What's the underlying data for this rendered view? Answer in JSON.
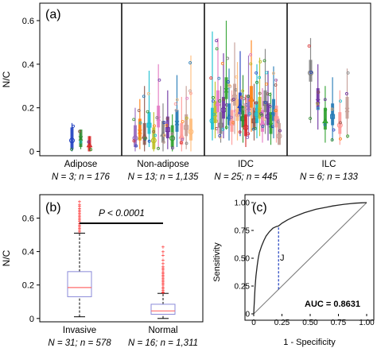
{
  "chart_data": [
    {
      "panel": "(a)",
      "type": "scatter",
      "ylabel": "N/C",
      "ylim": [
        -0.02,
        0.68
      ],
      "yticks": [
        "0",
        "0.2",
        "0.4",
        "0.6"
      ],
      "yticks_num": [
        0,
        0.2,
        0.4,
        0.6
      ],
      "groups": [
        {
          "label": "Adipose",
          "stats": "N = 3; n = 176",
          "patients": 3,
          "cells": 176
        },
        {
          "label": "Non-adipose",
          "stats": "N = 13; n = 1,135",
          "patients": 13,
          "cells": 1135
        },
        {
          "label": "IDC",
          "stats": "N = 25; n = 445",
          "patients": 25,
          "cells": 445
        },
        {
          "label": "ILC",
          "stats": "N = 6; n = 133",
          "patients": 6,
          "cells": 133
        }
      ],
      "colors": [
        "#1f3fbf",
        "#2a8a2a",
        "#d62728",
        "#9467bd",
        "#ff7f0e",
        "#8c564b",
        "#17becf",
        "#bcbd22",
        "#e377c2",
        "#7f7f7f",
        "#6b2fa0",
        "#2ca02c",
        "#1f77b4",
        "#ff9896",
        "#c49c94",
        "#ffbb78"
      ],
      "patient_means": [
        [
          0.05,
          0.06,
          0.03
        ],
        [
          0.06,
          0.09,
          0.07,
          0.12,
          0.05,
          0.15,
          0.08,
          0.1,
          0.06,
          0.13,
          0.07,
          0.11,
          0.09
        ],
        [
          0.14,
          0.17,
          0.22,
          0.12,
          0.19,
          0.28,
          0.16,
          0.13,
          0.25,
          0.18,
          0.21,
          0.15,
          0.11,
          0.2,
          0.24,
          0.14,
          0.17,
          0.19,
          0.13,
          0.22,
          0.16,
          0.12,
          0.18,
          0.15,
          0.07
        ],
        [
          0.36,
          0.23,
          0.14,
          0.16,
          0.12,
          0.19
        ]
      ],
      "patient_ranges": [
        [
          [
            0.0,
            0.13
          ],
          [
            0.01,
            0.1
          ],
          [
            0.0,
            0.07
          ]
        ],
        [
          [
            0.0,
            0.2
          ],
          [
            0.01,
            0.24
          ],
          [
            0.0,
            0.3
          ],
          [
            0.02,
            0.37
          ],
          [
            0.0,
            0.18
          ],
          [
            0.01,
            0.4
          ],
          [
            0.0,
            0.22
          ],
          [
            0.01,
            0.28
          ],
          [
            0.0,
            0.17
          ],
          [
            0.02,
            0.35
          ],
          [
            0.0,
            0.25
          ],
          [
            0.01,
            0.3
          ],
          [
            0.0,
            0.44
          ]
        ],
        [
          [
            0.05,
            0.55
          ],
          [
            0.06,
            0.32
          ],
          [
            0.08,
            0.52
          ],
          [
            0.04,
            0.3
          ],
          [
            0.06,
            0.45
          ],
          [
            0.1,
            0.6
          ],
          [
            0.05,
            0.38
          ],
          [
            0.03,
            0.28
          ],
          [
            0.08,
            0.5
          ],
          [
            0.05,
            0.41
          ],
          [
            0.07,
            0.46
          ],
          [
            0.04,
            0.35
          ],
          [
            0.02,
            0.26
          ],
          [
            0.06,
            0.44
          ],
          [
            0.09,
            0.51
          ],
          [
            0.05,
            0.31
          ],
          [
            0.06,
            0.4
          ],
          [
            0.07,
            0.43
          ],
          [
            0.04,
            0.29
          ],
          [
            0.08,
            0.47
          ],
          [
            0.05,
            0.37
          ],
          [
            0.03,
            0.27
          ],
          [
            0.06,
            0.39
          ],
          [
            0.04,
            0.33
          ],
          [
            0.03,
            0.15
          ]
        ],
        [
          [
            0.13,
            0.52
          ],
          [
            0.1,
            0.4
          ],
          [
            0.04,
            0.3
          ],
          [
            0.05,
            0.34
          ],
          [
            0.03,
            0.28
          ],
          [
            0.06,
            0.38
          ]
        ]
      ]
    },
    {
      "panel": "(b)",
      "type": "box",
      "ylabel": "N/C",
      "ylim": [
        -0.02,
        0.74
      ],
      "yticks": [
        "0",
        "0.2",
        "0.4",
        "0.6"
      ],
      "yticks_num": [
        0,
        0.2,
        0.4,
        0.6
      ],
      "annotation": "P < 0.0001",
      "groups": [
        {
          "label": "Invasive",
          "stats": "N = 31; n = 578",
          "q1": 0.13,
          "median": 0.185,
          "q3": 0.28,
          "whisker_low": 0.01,
          "whisker_high": 0.51,
          "outliers": [
            0.52,
            0.53,
            0.54,
            0.55,
            0.56,
            0.57,
            0.58,
            0.59,
            0.6,
            0.61,
            0.62,
            0.63,
            0.64,
            0.65,
            0.66,
            0.67,
            0.68,
            0.7
          ]
        },
        {
          "label": "Normal",
          "stats": "N = 16; n = 1,311",
          "q1": 0.025,
          "median": 0.045,
          "q3": 0.085,
          "whisker_low": 0.0,
          "whisker_high": 0.15,
          "outliers": [
            0.155,
            0.16,
            0.17,
            0.18,
            0.19,
            0.2,
            0.21,
            0.22,
            0.23,
            0.24,
            0.25,
            0.26,
            0.27,
            0.28,
            0.29,
            0.3,
            0.31,
            0.33,
            0.35,
            0.38,
            0.4,
            0.43
          ]
        }
      ],
      "colors": {
        "box": "#8a8ad8",
        "median": "#ff6b6b",
        "outlier": "#ff2020",
        "whisker": "#000000"
      }
    },
    {
      "panel": "(c)",
      "type": "line",
      "xlabel": "1 - Specificity",
      "ylabel": "Sensitivity",
      "xlim": [
        0,
        1
      ],
      "ylim": [
        0,
        1
      ],
      "xticks": [
        "0",
        "0.25",
        "0.50",
        "0.75",
        "1.00"
      ],
      "yticks": [
        "0",
        "0.25",
        "0.50",
        "0.75",
        "1.00"
      ],
      "ticks_num": [
        0,
        0.25,
        0.5,
        0.75,
        1.0
      ],
      "annotation": "AUC = 0.8631",
      "j_label": "J",
      "j_point": {
        "x": 0.22,
        "y_low": 0.22,
        "y_high": 0.79
      },
      "roc": {
        "x": [
          0,
          0.003,
          0.007,
          0.012,
          0.02,
          0.03,
          0.04,
          0.05,
          0.07,
          0.09,
          0.11,
          0.14,
          0.17,
          0.2,
          0.22,
          0.25,
          0.3,
          0.35,
          0.4,
          0.45,
          0.5,
          0.55,
          0.6,
          0.65,
          0.7,
          0.75,
          0.8,
          0.85,
          0.9,
          0.95,
          1.0
        ],
        "y": [
          0,
          0.06,
          0.14,
          0.24,
          0.34,
          0.43,
          0.5,
          0.55,
          0.61,
          0.66,
          0.7,
          0.74,
          0.77,
          0.785,
          0.79,
          0.815,
          0.845,
          0.87,
          0.89,
          0.91,
          0.925,
          0.94,
          0.95,
          0.96,
          0.97,
          0.978,
          0.985,
          0.99,
          0.995,
          0.998,
          1.0
        ]
      }
    }
  ]
}
